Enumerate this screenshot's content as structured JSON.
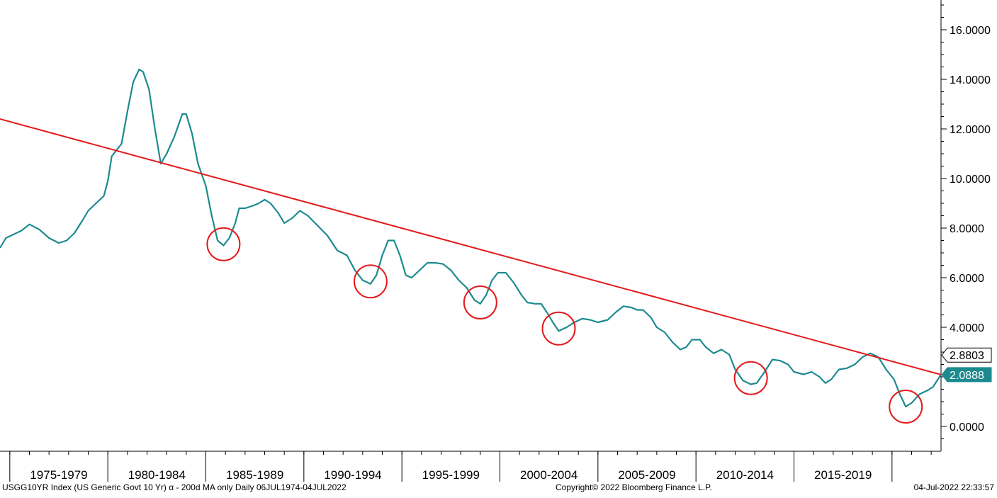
{
  "chart_data": {
    "type": "line",
    "ylim": [
      -1.0,
      17.2
    ],
    "y_ticks": [
      "16.0000",
      "14.0000",
      "12.0000",
      "10.0000",
      "8.0000",
      "6.0000",
      "4.0000",
      "2.0000",
      "0.0000"
    ],
    "y_tick_values": [
      16,
      14,
      12,
      10,
      8,
      6,
      4,
      2,
      0
    ],
    "x_range": [
      1974.5,
      2022.5
    ],
    "x_periods": [
      "1975-1979",
      "1980-1984",
      "1985-1989",
      "1990-1994",
      "1995-1999",
      "2000-2004",
      "2005-2009",
      "2010-2014",
      "2015-2019"
    ],
    "x_period_bounds": [
      1975,
      1980,
      1985,
      1990,
      1995,
      2000,
      2005,
      2010,
      2015,
      2020
    ],
    "grid": false,
    "series": [
      {
        "color": "#1c8a8f",
        "points": [
          [
            1974.5,
            7.2
          ],
          [
            1974.8,
            7.6
          ],
          [
            1975.2,
            7.75
          ],
          [
            1975.6,
            7.9
          ],
          [
            1976.0,
            8.15
          ],
          [
            1976.5,
            7.95
          ],
          [
            1977.0,
            7.6
          ],
          [
            1977.5,
            7.4
          ],
          [
            1977.9,
            7.5
          ],
          [
            1978.3,
            7.8
          ],
          [
            1978.7,
            8.3
          ],
          [
            1979.0,
            8.7
          ],
          [
            1979.4,
            9.0
          ],
          [
            1979.8,
            9.3
          ],
          [
            1980.0,
            9.9
          ],
          [
            1980.2,
            10.9
          ],
          [
            1980.5,
            11.2
          ],
          [
            1980.7,
            11.4
          ],
          [
            1981.0,
            12.7
          ],
          [
            1981.3,
            13.9
          ],
          [
            1981.6,
            14.4
          ],
          [
            1981.8,
            14.3
          ],
          [
            1982.1,
            13.6
          ],
          [
            1982.4,
            12.0
          ],
          [
            1982.7,
            10.6
          ],
          [
            1983.0,
            11.0
          ],
          [
            1983.4,
            11.7
          ],
          [
            1983.8,
            12.6
          ],
          [
            1984.0,
            12.6
          ],
          [
            1984.3,
            11.8
          ],
          [
            1984.6,
            10.6
          ],
          [
            1985.0,
            9.7
          ],
          [
            1985.3,
            8.5
          ],
          [
            1985.6,
            7.5
          ],
          [
            1985.9,
            7.3
          ],
          [
            1986.2,
            7.6
          ],
          [
            1986.5,
            8.2
          ],
          [
            1986.7,
            8.8
          ],
          [
            1987.0,
            8.8
          ],
          [
            1987.4,
            8.9
          ],
          [
            1987.7,
            9.0
          ],
          [
            1988.0,
            9.15
          ],
          [
            1988.3,
            9.0
          ],
          [
            1988.7,
            8.6
          ],
          [
            1989.0,
            8.2
          ],
          [
            1989.4,
            8.4
          ],
          [
            1989.8,
            8.7
          ],
          [
            1990.2,
            8.5
          ],
          [
            1990.7,
            8.1
          ],
          [
            1991.2,
            7.7
          ],
          [
            1991.7,
            7.1
          ],
          [
            1992.2,
            6.9
          ],
          [
            1992.6,
            6.3
          ],
          [
            1993.0,
            5.9
          ],
          [
            1993.4,
            5.75
          ],
          [
            1993.7,
            6.1
          ],
          [
            1994.0,
            6.9
          ],
          [
            1994.3,
            7.5
          ],
          [
            1994.6,
            7.5
          ],
          [
            1994.9,
            6.9
          ],
          [
            1995.2,
            6.1
          ],
          [
            1995.5,
            6.0
          ],
          [
            1995.9,
            6.3
          ],
          [
            1996.3,
            6.6
          ],
          [
            1996.7,
            6.6
          ],
          [
            1997.1,
            6.55
          ],
          [
            1997.5,
            6.3
          ],
          [
            1997.9,
            5.9
          ],
          [
            1998.3,
            5.6
          ],
          [
            1998.7,
            5.1
          ],
          [
            1999.0,
            4.95
          ],
          [
            1999.3,
            5.3
          ],
          [
            1999.6,
            5.9
          ],
          [
            1999.9,
            6.2
          ],
          [
            2000.3,
            6.2
          ],
          [
            2000.7,
            5.8
          ],
          [
            2001.1,
            5.3
          ],
          [
            2001.4,
            5.0
          ],
          [
            2001.8,
            4.95
          ],
          [
            2002.1,
            4.95
          ],
          [
            2002.4,
            4.6
          ],
          [
            2002.7,
            4.2
          ],
          [
            2003.0,
            3.85
          ],
          [
            2003.4,
            4.0
          ],
          [
            2003.8,
            4.2
          ],
          [
            2004.2,
            4.35
          ],
          [
            2004.6,
            4.3
          ],
          [
            2005.0,
            4.2
          ],
          [
            2005.5,
            4.3
          ],
          [
            2005.9,
            4.6
          ],
          [
            2006.3,
            4.85
          ],
          [
            2006.7,
            4.8
          ],
          [
            2007.0,
            4.7
          ],
          [
            2007.3,
            4.7
          ],
          [
            2007.7,
            4.4
          ],
          [
            2008.0,
            4.0
          ],
          [
            2008.4,
            3.8
          ],
          [
            2008.8,
            3.4
          ],
          [
            2009.2,
            3.1
          ],
          [
            2009.5,
            3.2
          ],
          [
            2009.8,
            3.5
          ],
          [
            2010.2,
            3.5
          ],
          [
            2010.5,
            3.2
          ],
          [
            2010.9,
            2.95
          ],
          [
            2011.3,
            3.1
          ],
          [
            2011.7,
            2.9
          ],
          [
            2012.0,
            2.3
          ],
          [
            2012.4,
            1.85
          ],
          [
            2012.8,
            1.7
          ],
          [
            2013.1,
            1.75
          ],
          [
            2013.5,
            2.2
          ],
          [
            2013.9,
            2.7
          ],
          [
            2014.3,
            2.65
          ],
          [
            2014.7,
            2.5
          ],
          [
            2015.0,
            2.2
          ],
          [
            2015.5,
            2.1
          ],
          [
            2015.9,
            2.2
          ],
          [
            2016.3,
            2.0
          ],
          [
            2016.6,
            1.75
          ],
          [
            2016.9,
            1.9
          ],
          [
            2017.3,
            2.3
          ],
          [
            2017.7,
            2.35
          ],
          [
            2018.1,
            2.5
          ],
          [
            2018.5,
            2.8
          ],
          [
            2018.9,
            2.95
          ],
          [
            2019.3,
            2.8
          ],
          [
            2019.7,
            2.3
          ],
          [
            2020.1,
            1.9
          ],
          [
            2020.4,
            1.3
          ],
          [
            2020.7,
            0.8
          ],
          [
            2021.0,
            0.95
          ],
          [
            2021.4,
            1.3
          ],
          [
            2021.8,
            1.45
          ],
          [
            2022.1,
            1.6
          ],
          [
            2022.5,
            2.1
          ]
        ]
      },
      {
        "color": "#e41a1c",
        "points": [
          [
            1974.5,
            12.4
          ],
          [
            2022.5,
            2.0888
          ]
        ]
      }
    ],
    "highlight_circles": [
      {
        "x": 1985.9,
        "y": 7.35
      },
      {
        "x": 1993.4,
        "y": 5.85
      },
      {
        "x": 1999.0,
        "y": 5.0
      },
      {
        "x": 2003.0,
        "y": 3.95
      },
      {
        "x": 2012.8,
        "y": 1.95
      },
      {
        "x": 2020.7,
        "y": 0.8
      }
    ],
    "last_value_labels": [
      {
        "text": "2.8803",
        "value": 2.8803,
        "style": "outline"
      },
      {
        "text": "2.0888",
        "value": 2.0888,
        "style": "filled"
      }
    ],
    "colors": {
      "series": "#1c8a8f",
      "trend": "#e41a1c",
      "circle": "#e41a1c",
      "label_fill": "#1c8a8f"
    }
  },
  "footer": {
    "left": "USGG10YR Index (US Generic Govt 10 Yr) α - 200d MA only  Daily 06JUL1974-04JUL2022",
    "center": "Copyright© 2022 Bloomberg Finance L.P.",
    "right": "04-Jul-2022 22:33:57"
  }
}
